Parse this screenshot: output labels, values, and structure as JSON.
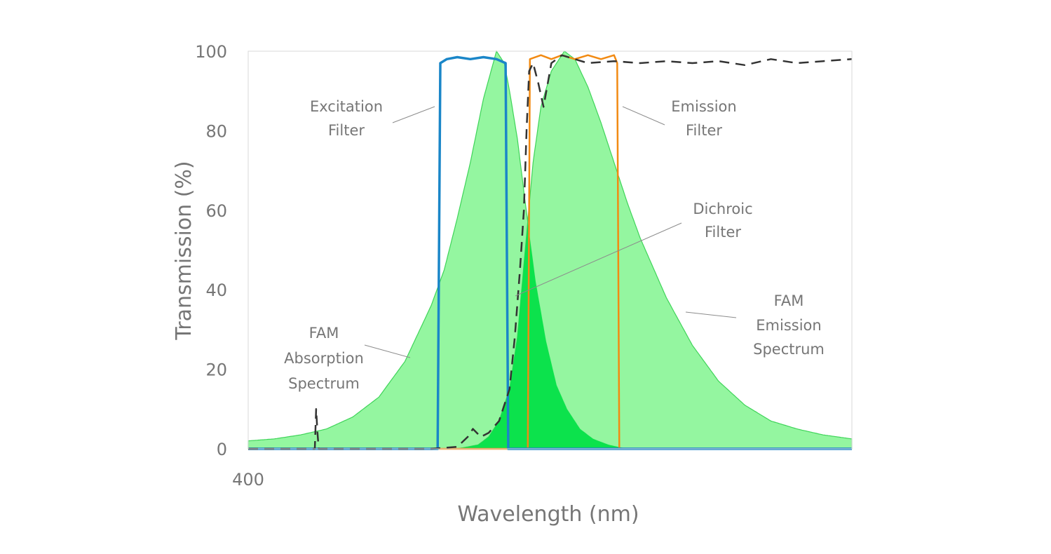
{
  "chart_data": {
    "type": "area",
    "title": "",
    "xlabel": "Wavelength (nm)",
    "ylabel": "Transmission (%)",
    "xlim": [
      400,
      631
    ],
    "ylim": [
      0,
      100
    ],
    "x_ticks": [
      400
    ],
    "y_ticks": [
      0,
      20,
      40,
      60,
      80,
      100
    ],
    "grid": false,
    "colors": {
      "absorption_fill": "#8ef59b",
      "emission_fill": "#8ef59b",
      "curve_edge": "#3fd459",
      "overlap_fill": "#0ce24c",
      "excitation": "#1a86c8",
      "emission_filter": "#f28a12",
      "dichroic": "#333333",
      "axis": "#d9d9d9",
      "leader": "#8c8c8c"
    },
    "series": [
      {
        "name": "FAM Absorption Spectrum",
        "style": "filled",
        "x": [
          400,
          410,
          420,
          430,
          440,
          450,
          460,
          470,
          475,
          480,
          485,
          490,
          495,
          498,
          500,
          503,
          506,
          510,
          514,
          518,
          522,
          527,
          532,
          538,
          545
        ],
        "y": [
          2,
          2.5,
          3.5,
          5,
          8,
          13,
          22,
          36,
          45,
          58,
          72,
          88,
          100,
          97,
          90,
          78,
          62,
          42,
          27,
          16,
          10,
          5,
          2.5,
          1,
          0
        ]
      },
      {
        "name": "FAM Emission Spectrum",
        "style": "filled",
        "x": [
          480,
          488,
          492,
          496,
          500,
          503,
          506,
          509,
          512,
          516,
          521,
          525,
          530,
          535,
          540,
          545,
          550,
          560,
          570,
          580,
          590,
          600,
          610,
          620,
          631
        ],
        "y": [
          0,
          1,
          3,
          7,
          15,
          28,
          50,
          72,
          86,
          95,
          100,
          98,
          91,
          82,
          72,
          62,
          53,
          38,
          26,
          17,
          11,
          7,
          5,
          3.5,
          2.5
        ]
      },
      {
        "name": "Excitation Filter",
        "style": "line",
        "x": [
          400,
          472.5,
          473.5,
          476,
          480,
          485,
          490,
          495,
          498.5,
          499.5,
          631
        ],
        "y": [
          0,
          0,
          97,
          98,
          98.5,
          98,
          98.5,
          98,
          97,
          0,
          0
        ]
      },
      {
        "name": "Emission Filter",
        "style": "line",
        "x": [
          400,
          507,
          507.8,
          512,
          516,
          520,
          525,
          530,
          535,
          540,
          541.2,
          542,
          631
        ],
        "y": [
          0,
          0,
          98,
          99,
          98,
          99,
          98,
          99,
          98,
          99,
          97,
          0,
          0
        ]
      },
      {
        "name": "Dichroic Filter",
        "style": "dashed",
        "x": [
          400,
          425.5,
          426,
          426.5,
          427,
          470,
          480,
          484,
          486,
          489,
          492,
          496,
          500,
          502,
          504,
          505.5,
          506.5,
          507.5,
          509,
          511,
          513,
          516,
          520,
          525,
          530,
          540,
          550,
          560,
          570,
          580,
          590,
          600,
          610,
          620,
          631
        ],
        "y": [
          0,
          0,
          10,
          4,
          0,
          0,
          0.5,
          3,
          5,
          3,
          4,
          7,
          15,
          28,
          45,
          60,
          80,
          95,
          97,
          92,
          86,
          97,
          99,
          98,
          97,
          97.5,
          97,
          97.5,
          97,
          97.5,
          96.5,
          98,
          97,
          97.5,
          98
        ]
      }
    ],
    "annotations": [
      {
        "id": "excitation",
        "lines": [
          "Excitation",
          "Filter"
        ]
      },
      {
        "id": "emission",
        "lines": [
          "Emission",
          "Filter"
        ]
      },
      {
        "id": "dichroic",
        "lines": [
          "Dichroic",
          "Filter"
        ]
      },
      {
        "id": "absorption",
        "lines": [
          "FAM",
          "Absorption",
          "Spectrum"
        ]
      },
      {
        "id": "emspec",
        "lines": [
          "FAM",
          "Emission",
          "Spectrum"
        ]
      }
    ]
  }
}
